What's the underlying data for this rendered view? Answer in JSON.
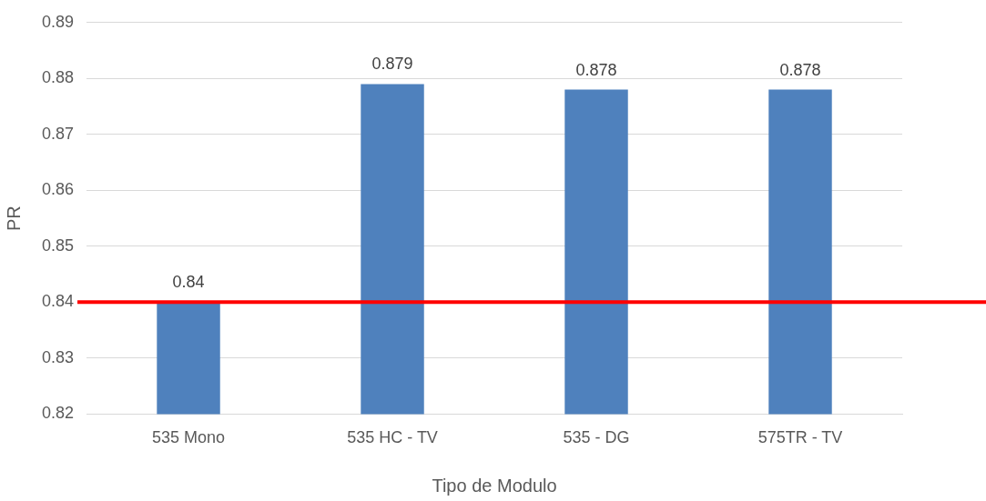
{
  "chart_data": {
    "type": "bar",
    "xlabel": "Tipo de Modulo",
    "ylabel": "PR",
    "categories": [
      "535 Mono",
      "535 HC - TV",
      "535 - DG",
      "575TR - TV"
    ],
    "values": [
      0.84,
      0.879,
      0.878,
      0.878
    ],
    "color": "#4f81bd",
    "ylim": [
      0.82,
      0.89
    ],
    "yticks": [
      0.82,
      0.83,
      0.84,
      0.85,
      0.86,
      0.87,
      0.88,
      0.89
    ],
    "grid": "y",
    "data_labels": true,
    "legend": false,
    "ref_lines": [
      {
        "axis": "y",
        "value": 0.84,
        "color": "#ff0000"
      }
    ]
  }
}
